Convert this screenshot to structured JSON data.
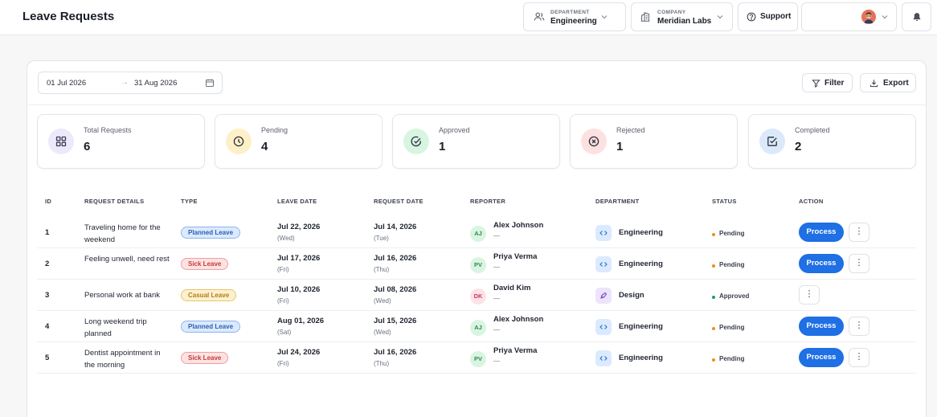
{
  "header": {
    "title": "Leave Requests",
    "department": {
      "caption": "DEPARTMENT",
      "value": "Engineering"
    },
    "company": {
      "caption": "COMPANY",
      "value": "Meridian Labs"
    },
    "support_label": "Support"
  },
  "toolbar": {
    "date_from": "01 Jul 2026",
    "date_to": "31 Aug 2026",
    "arrow": "→",
    "filter_label": "Filter",
    "export_label": "Export"
  },
  "stats": [
    {
      "label": "Total Requests",
      "value": "6",
      "icon": "grid-icon",
      "color": "#ece9fb"
    },
    {
      "label": "Pending",
      "value": "4",
      "icon": "clock-icon",
      "color": "#fdf0c8"
    },
    {
      "label": "Approved",
      "value": "1",
      "icon": "check-circle-icon",
      "color": "#d8f5e1"
    },
    {
      "label": "Rejected",
      "value": "1",
      "icon": "x-circle-icon",
      "color": "#fde0e0"
    },
    {
      "label": "Completed",
      "value": "2",
      "icon": "check-square-icon",
      "color": "#dbe9fb"
    }
  ],
  "table": {
    "headers": [
      "ID",
      "REQUEST DETAILS",
      "TYPE",
      "LEAVE DATE",
      "REQUEST DATE",
      "REPORTER",
      "DEPARTMENT",
      "STATUS",
      "ACTION"
    ],
    "process_label": "Process",
    "more_label": "⋮",
    "rows": [
      {
        "id": "1",
        "details": "Traveling home for the weekend",
        "type": "Planned Leave",
        "leave_date": "Jul 22, 2026",
        "leave_day": "(Wed)",
        "request_date": "Jul 14, 2026",
        "request_day": "(Tue)",
        "initials": "AJ",
        "reporter": "Alex Johnson",
        "reporter_sub": "—",
        "department": "Engineering",
        "status": "Pending"
      },
      {
        "id": "2",
        "details": "Feeling unwell, need rest",
        "type": "Sick Leave",
        "leave_date": "Jul 17, 2026",
        "leave_day": "(Fri)",
        "request_date": "Jul 16, 2026",
        "request_day": "(Thu)",
        "initials": "PV",
        "reporter": "Priya Verma",
        "reporter_sub": "—",
        "department": "Engineering",
        "status": "Pending"
      },
      {
        "id": "3",
        "details": "Personal work at bank",
        "type": "Casual Leave",
        "leave_date": "Jul 10, 2026",
        "leave_day": "(Fri)",
        "request_date": "Jul 08, 2026",
        "request_day": "(Wed)",
        "initials": "DK",
        "reporter": "David Kim",
        "reporter_sub": "—",
        "department": "Design",
        "status": "Approved"
      },
      {
        "id": "4",
        "details": "Long weekend trip planned",
        "type": "Planned Leave",
        "leave_date": "Aug 01, 2026",
        "leave_day": "(Sat)",
        "request_date": "Jul 15, 2026",
        "request_day": "(Wed)",
        "initials": "AJ",
        "reporter": "Alex Johnson",
        "reporter_sub": "—",
        "department": "Engineering",
        "status": "Pending"
      },
      {
        "id": "5",
        "details": "Dentist appointment in the morning",
        "type": "Sick Leave",
        "leave_date": "Jul 24, 2026",
        "leave_day": "(Fri)",
        "request_date": "Jul 16, 2026",
        "request_day": "(Thu)",
        "initials": "PV",
        "reporter": "Priya Verma",
        "reporter_sub": "—",
        "department": "Engineering",
        "status": "Pending"
      }
    ]
  },
  "colors": {
    "accent": "#1f6fe5",
    "pending": "#f08c1a",
    "approved": "#1e9e5a"
  }
}
